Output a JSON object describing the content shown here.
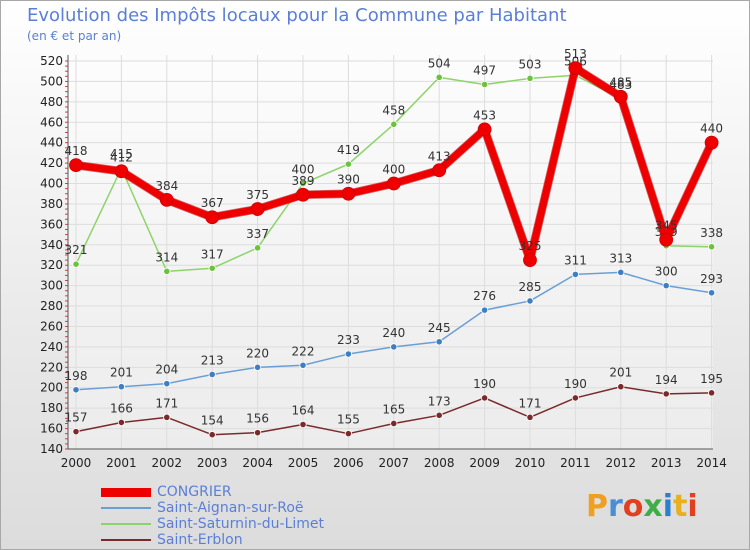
{
  "title": "Evolution des Impôts locaux pour la Commune par Habitant",
  "subtitle": "(en € et par an)",
  "logo": {
    "text": "Proxiti",
    "colors": [
      "#f0a020",
      "#4a8fd6",
      "#e04020",
      "#3fae49",
      "#2a7fd0",
      "#e8b020",
      "#e04020"
    ]
  },
  "chart_data": {
    "type": "line",
    "title": "Evolution des Impôts locaux pour la Commune par Habitant",
    "subtitle": "(en € et par an)",
    "xlabel": "",
    "ylabel": "",
    "ylim": [
      140,
      520
    ],
    "yticks": [
      140,
      160,
      180,
      200,
      220,
      240,
      260,
      280,
      300,
      320,
      340,
      360,
      380,
      400,
      420,
      440,
      460,
      480,
      500,
      520
    ],
    "x": [
      2000,
      2001,
      2002,
      2003,
      2004,
      2005,
      2006,
      2007,
      2008,
      2009,
      2010,
      2011,
      2012,
      2013,
      2014
    ],
    "grid": true,
    "legend": "bottom-left",
    "series": [
      {
        "name": "Saint-Saturnin-du-Limet",
        "color": "#8cd46a",
        "marker": "#6cc33a",
        "width": 1.5,
        "values": [
          321,
          415,
          314,
          317,
          337,
          400,
          419,
          458,
          504,
          497,
          503,
          506,
          483,
          339,
          338
        ]
      },
      {
        "name": "Saint-Aignan-sur-Roë",
        "color": "#6a9fd6",
        "marker": "#3e7fc1",
        "width": 1.5,
        "values": [
          198,
          201,
          204,
          213,
          220,
          222,
          233,
          240,
          245,
          276,
          285,
          311,
          313,
          300,
          293
        ]
      },
      {
        "name": "Saint-Erblon",
        "color": "#7a2a2a",
        "marker": "#7a2a2a",
        "width": 1.5,
        "values": [
          157,
          166,
          171,
          154,
          156,
          164,
          155,
          165,
          173,
          190,
          171,
          190,
          201,
          194,
          195
        ]
      },
      {
        "name": "CONGRIER",
        "color": "#ee0000",
        "marker": "#ee0000",
        "width": 7,
        "values": [
          418,
          412,
          384,
          367,
          375,
          389,
          390,
          400,
          413,
          453,
          325,
          513,
          485,
          345,
          440
        ]
      }
    ],
    "legend_order": [
      "CONGRIER",
      "Saint-Aignan-sur-Roë",
      "Saint-Saturnin-du-Limet",
      "Saint-Erblon"
    ]
  }
}
